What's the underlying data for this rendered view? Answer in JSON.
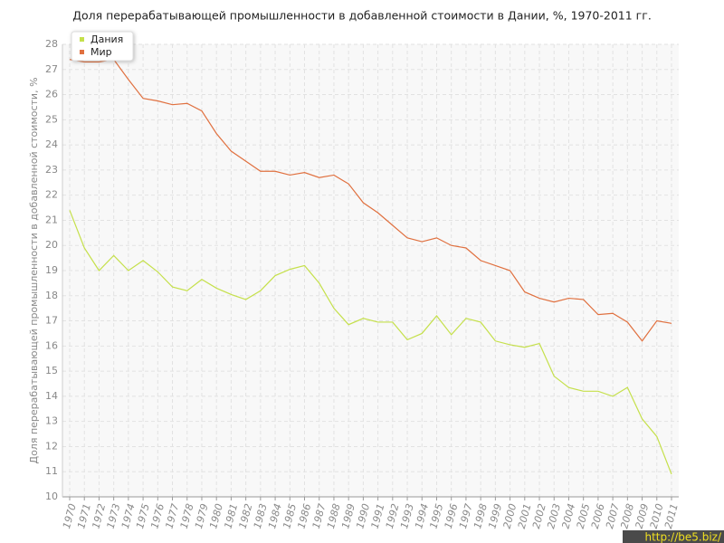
{
  "chart_data": {
    "type": "line",
    "title": "Доля перерабатывающей промышленности в добавленной стоимости в Дании, %, 1970-2011 гг.",
    "y_label": "Доля перерабатывающей промышленности в добавленной стоимости, %",
    "watermark": "http://be5.biz/",
    "x": [
      1970,
      1971,
      1972,
      1973,
      1974,
      1975,
      1976,
      1977,
      1978,
      1979,
      1980,
      1981,
      1982,
      1983,
      1984,
      1985,
      1986,
      1987,
      1988,
      1989,
      1990,
      1991,
      1992,
      1993,
      1994,
      1995,
      1996,
      1997,
      1998,
      1999,
      2000,
      2001,
      2002,
      2003,
      2004,
      2005,
      2006,
      2007,
      2008,
      2009,
      2010,
      2011
    ],
    "xlim": [
      1970,
      2011
    ],
    "series": [
      {
        "name": "Дания",
        "color": "#c5e04b",
        "values": [
          21.4,
          19.9,
          19.0,
          19.6,
          19.0,
          19.4,
          18.95,
          18.35,
          18.2,
          18.65,
          18.3,
          18.05,
          17.85,
          18.2,
          18.8,
          19.05,
          19.2,
          18.5,
          17.5,
          16.85,
          17.1,
          16.95,
          16.95,
          16.25,
          16.5,
          17.2,
          16.45,
          17.1,
          16.95,
          16.2,
          16.05,
          15.95,
          16.1,
          14.8,
          14.35,
          14.2,
          14.2,
          14.0,
          14.35,
          13.1,
          12.4,
          10.9
        ]
      },
      {
        "name": "Мир",
        "color": "#e0703f",
        "values": [
          27.4,
          27.3,
          27.3,
          27.4,
          26.6,
          25.85,
          25.75,
          25.6,
          25.65,
          25.35,
          24.45,
          23.75,
          23.35,
          22.95,
          22.95,
          22.8,
          22.9,
          22.7,
          22.8,
          22.45,
          21.7,
          21.3,
          20.8,
          20.3,
          20.15,
          20.3,
          20.0,
          19.9,
          19.4,
          19.2,
          19.0,
          18.15,
          17.9,
          17.75,
          17.9,
          17.85,
          17.25,
          17.3,
          16.95,
          16.2,
          17.0,
          16.9
        ]
      }
    ],
    "ylim": [
      10,
      28
    ],
    "yticks": [
      10,
      11,
      12,
      13,
      14,
      15,
      16,
      17,
      18,
      19,
      20,
      21,
      22,
      23,
      24,
      25,
      26,
      27,
      28
    ],
    "grid": true,
    "legend": "top-left"
  }
}
